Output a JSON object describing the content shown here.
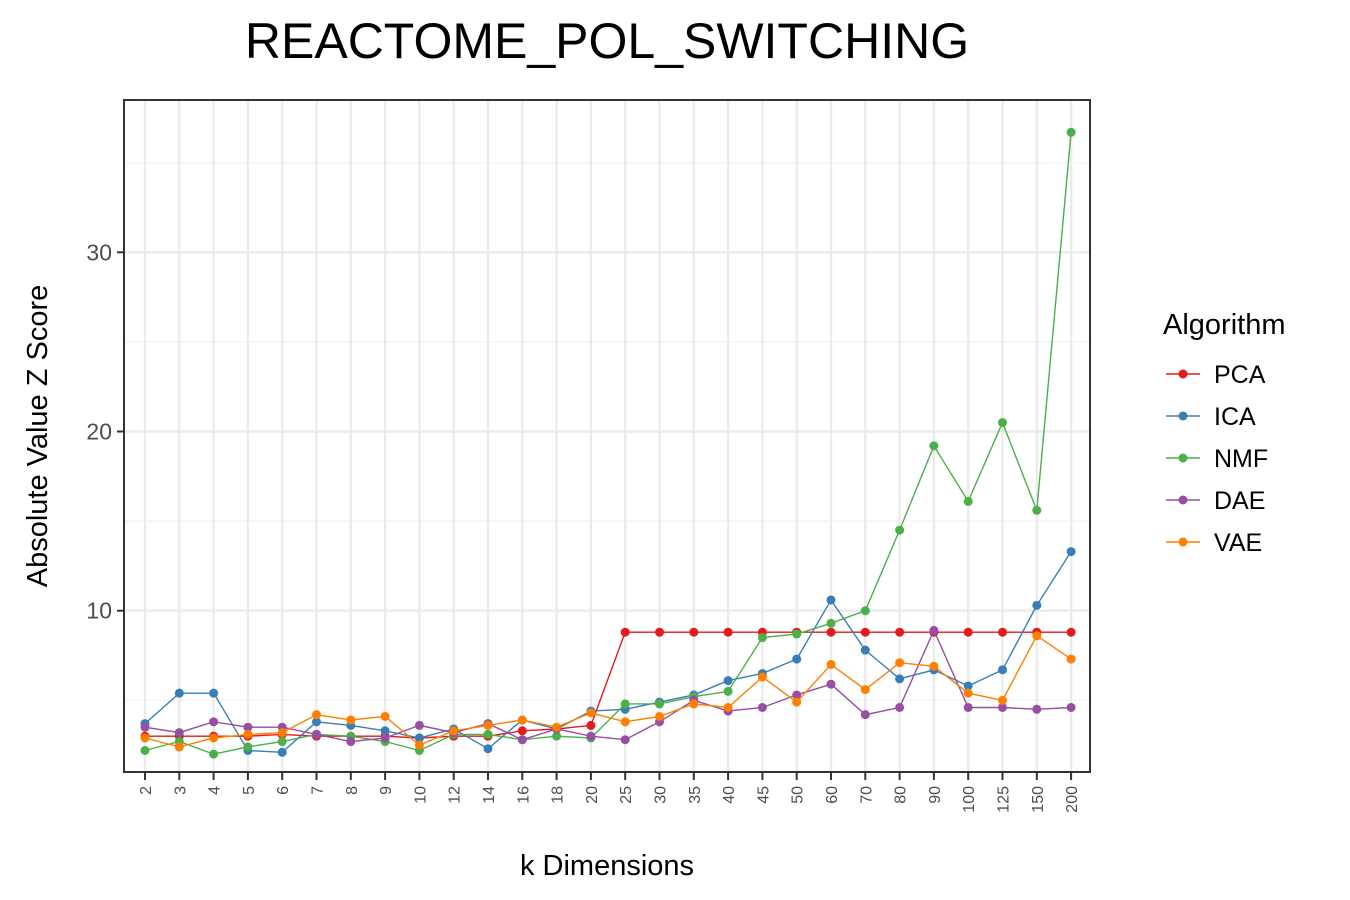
{
  "chart_data": {
    "type": "line",
    "title": "REACTOME_POL_SWITCHING",
    "xlabel": "k Dimensions",
    "ylabel": "Absolute Value Z Score",
    "categories": [
      "2",
      "3",
      "4",
      "5",
      "6",
      "7",
      "8",
      "9",
      "10",
      "12",
      "14",
      "16",
      "18",
      "20",
      "25",
      "30",
      "35",
      "40",
      "45",
      "50",
      "60",
      "70",
      "80",
      "90",
      "100",
      "125",
      "150",
      "200"
    ],
    "y_ticks": [
      10,
      20,
      30
    ],
    "ylim": [
      1,
      38.5
    ],
    "grid": true,
    "legend": {
      "title": "Algorithm",
      "placement": "right"
    },
    "series": [
      {
        "name": "PCA",
        "color": "#e41a1c",
        "values": [
          3.0,
          3.0,
          3.0,
          3.0,
          3.1,
          3.0,
          3.0,
          3.0,
          2.9,
          3.0,
          3.0,
          3.3,
          3.4,
          3.6,
          8.8,
          8.8,
          8.8,
          8.8,
          8.8,
          8.8,
          8.8,
          8.8,
          8.8,
          8.8,
          8.8,
          8.8,
          8.8,
          8.8
        ]
      },
      {
        "name": "ICA",
        "color": "#377eb8",
        "values": [
          3.7,
          5.4,
          5.4,
          2.2,
          2.1,
          3.8,
          3.6,
          3.3,
          2.9,
          3.4,
          2.3,
          3.9,
          3.4,
          4.4,
          4.5,
          4.9,
          5.3,
          6.1,
          6.5,
          7.3,
          10.6,
          7.8,
          6.2,
          6.7,
          5.8,
          6.7,
          10.3,
          13.3
        ]
      },
      {
        "name": "NMF",
        "color": "#4daf4a",
        "values": [
          2.2,
          2.7,
          2.0,
          2.4,
          2.7,
          3.1,
          3.0,
          2.7,
          2.2,
          3.1,
          3.1,
          2.8,
          3.0,
          2.9,
          4.8,
          4.8,
          5.2,
          5.5,
          8.5,
          8.7,
          9.3,
          10.0,
          14.5,
          19.2,
          16.1,
          20.5,
          15.6,
          36.7
        ]
      },
      {
        "name": "DAE",
        "color": "#984ea3",
        "values": [
          3.5,
          3.2,
          3.8,
          3.5,
          3.5,
          3.1,
          2.7,
          2.9,
          3.6,
          3.2,
          3.7,
          2.8,
          3.4,
          3.0,
          2.8,
          3.8,
          5.0,
          4.4,
          4.6,
          5.3,
          5.9,
          4.2,
          4.6,
          8.9,
          4.6,
          4.6,
          4.5,
          4.6
        ]
      },
      {
        "name": "VAE",
        "color": "#ff7f00",
        "values": [
          2.9,
          2.4,
          2.9,
          3.1,
          3.2,
          4.2,
          3.9,
          4.1,
          2.5,
          3.3,
          3.6,
          3.9,
          3.5,
          4.3,
          3.8,
          4.1,
          4.8,
          4.6,
          6.3,
          4.9,
          7.0,
          5.6,
          7.1,
          6.9,
          5.4,
          5.0,
          8.6,
          7.3
        ]
      }
    ]
  }
}
